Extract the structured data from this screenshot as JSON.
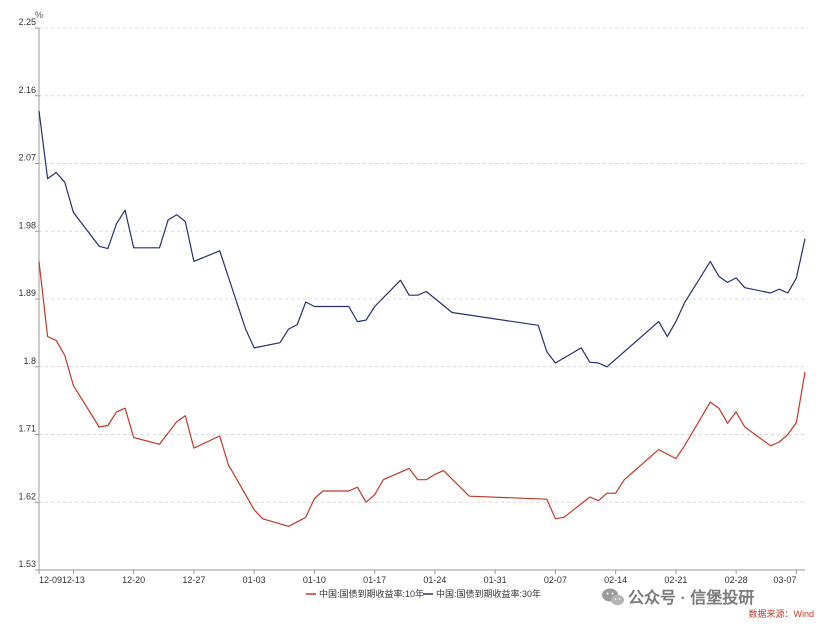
{
  "chart_data": {
    "type": "line",
    "y_unit": "%",
    "ylim": [
      1.53,
      2.25
    ],
    "y_ticks": [
      "2.25",
      "2.16",
      "2.07",
      "1.98",
      "1.89",
      "1.8",
      "1.71",
      "1.62",
      "1.53"
    ],
    "x_ticks": [
      "12-09",
      "12-13",
      "12-20",
      "12-27",
      "01-03",
      "01-10",
      "01-17",
      "01-24",
      "01-31",
      "02-07",
      "02-14",
      "02-21",
      "02-28",
      "03-07"
    ],
    "x_tick_index": [
      0,
      4,
      11,
      18,
      25,
      32,
      39,
      46,
      53,
      60,
      67,
      74,
      81,
      88
    ],
    "grid": true,
    "legend_position": "bottom",
    "series": [
      {
        "name": "中国:国债到期收益率:10年",
        "color": "#c0392b",
        "points": [
          [
            0,
            1.94
          ],
          [
            1,
            1.84
          ],
          [
            2,
            1.835
          ],
          [
            3,
            1.815
          ],
          [
            4,
            1.775
          ],
          [
            7,
            1.72
          ],
          [
            8,
            1.722
          ],
          [
            9,
            1.74
          ],
          [
            10,
            1.745
          ],
          [
            11,
            1.706
          ],
          [
            14,
            1.697
          ],
          [
            16,
            1.727
          ],
          [
            17,
            1.735
          ],
          [
            18,
            1.692
          ],
          [
            21,
            1.708
          ],
          [
            22,
            1.67
          ],
          [
            25,
            1.61
          ],
          [
            26,
            1.598
          ],
          [
            29,
            1.588
          ],
          [
            31,
            1.6
          ],
          [
            32,
            1.625
          ],
          [
            33,
            1.635
          ],
          [
            36,
            1.635
          ],
          [
            37,
            1.64
          ],
          [
            38,
            1.62
          ],
          [
            39,
            1.63
          ],
          [
            40,
            1.65
          ],
          [
            43,
            1.665
          ],
          [
            44,
            1.65
          ],
          [
            45,
            1.65
          ],
          [
            46,
            1.657
          ],
          [
            47,
            1.662
          ],
          [
            50,
            1.628
          ],
          [
            59,
            1.624
          ],
          [
            60,
            1.598
          ],
          [
            61,
            1.6
          ],
          [
            64,
            1.627
          ],
          [
            65,
            1.622
          ],
          [
            66,
            1.632
          ],
          [
            67,
            1.632
          ],
          [
            68,
            1.65
          ],
          [
            72,
            1.69
          ],
          [
            74,
            1.678
          ],
          [
            75,
            1.695
          ],
          [
            78,
            1.753
          ],
          [
            79,
            1.745
          ],
          [
            80,
            1.725
          ],
          [
            81,
            1.74
          ],
          [
            82,
            1.72
          ],
          [
            85,
            1.695
          ],
          [
            86,
            1.7
          ],
          [
            87,
            1.71
          ],
          [
            88,
            1.726
          ],
          [
            89,
            1.793
          ]
        ]
      },
      {
        "name": "中国:国债到期收益率:30年",
        "color": "#27306b",
        "points": [
          [
            0,
            2.14
          ],
          [
            1,
            2.05
          ],
          [
            2,
            2.058
          ],
          [
            3,
            2.045
          ],
          [
            4,
            2.005
          ],
          [
            7,
            1.96
          ],
          [
            8,
            1.957
          ],
          [
            9,
            1.99
          ],
          [
            10,
            2.008
          ],
          [
            11,
            1.958
          ],
          [
            14,
            1.958
          ],
          [
            15,
            1.995
          ],
          [
            16,
            2.002
          ],
          [
            17,
            1.993
          ],
          [
            18,
            1.94
          ],
          [
            21,
            1.954
          ],
          [
            24,
            1.85
          ],
          [
            25,
            1.825
          ],
          [
            28,
            1.832
          ],
          [
            29,
            1.85
          ],
          [
            30,
            1.856
          ],
          [
            31,
            1.886
          ],
          [
            32,
            1.88
          ],
          [
            36,
            1.88
          ],
          [
            37,
            1.86
          ],
          [
            38,
            1.862
          ],
          [
            39,
            1.88
          ],
          [
            42,
            1.915
          ],
          [
            43,
            1.895
          ],
          [
            44,
            1.895
          ],
          [
            45,
            1.9
          ],
          [
            48,
            1.872
          ],
          [
            58,
            1.855
          ],
          [
            59,
            1.82
          ],
          [
            60,
            1.805
          ],
          [
            63,
            1.825
          ],
          [
            64,
            1.806
          ],
          [
            65,
            1.805
          ],
          [
            66,
            1.8
          ],
          [
            71,
            1.85
          ],
          [
            72,
            1.86
          ],
          [
            73,
            1.84
          ],
          [
            74,
            1.86
          ],
          [
            75,
            1.885
          ],
          [
            78,
            1.94
          ],
          [
            79,
            1.92
          ],
          [
            80,
            1.912
          ],
          [
            81,
            1.918
          ],
          [
            82,
            1.905
          ],
          [
            85,
            1.898
          ],
          [
            86,
            1.903
          ],
          [
            87,
            1.898
          ],
          [
            88,
            1.918
          ],
          [
            89,
            1.97
          ]
        ]
      }
    ]
  },
  "watermark": {
    "icon": "wechat-icon",
    "text": "公众号 · 信堡投研"
  },
  "source_note": "数据来源：Wind"
}
